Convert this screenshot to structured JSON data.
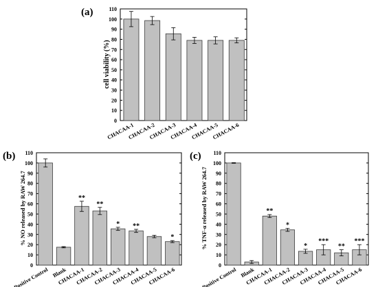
{
  "colors": {
    "bar_fill": "#c0c0c0",
    "bar_stroke": "#3a3a3a",
    "axis": "#000000"
  },
  "chart_data": [
    {
      "type": "bar",
      "panel_label": "(a)",
      "categories": [
        "CHACAA-1",
        "CHACAA-2",
        "CHACAA-3",
        "CHACAA-4",
        "CHACAA-5",
        "CHACAA-6"
      ],
      "values": [
        100,
        98.5,
        85.5,
        79,
        79,
        79
      ],
      "errors": [
        7.5,
        4,
        6,
        3,
        3.5,
        2.5
      ],
      "significance": [
        "",
        "",
        "",
        "",
        "",
        ""
      ],
      "ylabel": "cell viability (%)",
      "ylim": [
        0,
        110
      ],
      "yticks": [
        "0",
        "10",
        "20",
        "30",
        "40",
        "50",
        "60",
        "70",
        "80",
        "90",
        "100",
        "110"
      ],
      "grid": false
    },
    {
      "type": "bar",
      "panel_label": "(b)",
      "categories": [
        "Positive Control",
        "Blank",
        "CHACAA-1",
        "CHACAA-2",
        "CHACAA-3",
        "CHACAA-4",
        "CHACAA-5",
        "CHACAA-6"
      ],
      "values": [
        100,
        17.5,
        57.5,
        53,
        35.5,
        33.5,
        28,
        23
      ],
      "errors": [
        4,
        0.6,
        5,
        3.5,
        1.5,
        1.5,
        1.2,
        1
      ],
      "significance": [
        "",
        "",
        "**",
        "**",
        "*",
        "**",
        "",
        "*"
      ],
      "ylabel": "% NO released by RAW 264.7",
      "ylim": [
        0,
        110
      ],
      "yticks": [
        "0",
        "10",
        "20",
        "30",
        "40",
        "50",
        "60",
        "70",
        "80",
        "90",
        "100",
        "110"
      ],
      "grid": false
    },
    {
      "type": "bar",
      "panel_label": "(c)",
      "categories": [
        "Positive Control",
        "Blank",
        "CHACAA-1",
        "CHACAA-2",
        "CHACAA-3",
        "CHACAA-4",
        "CHACAA-5",
        "CHACAA-6"
      ],
      "values": [
        100,
        3,
        48,
        34.5,
        13.5,
        15,
        12,
        15
      ],
      "errors": [
        0.3,
        1.5,
        1.5,
        1.5,
        2,
        5,
        3,
        5
      ],
      "significance": [
        "",
        "",
        "**",
        "*",
        "*",
        "***",
        "**",
        "***"
      ],
      "ylabel": "% TNF-α released by RAW 264.7",
      "ylim": [
        0,
        110
      ],
      "yticks": [
        "0",
        "10",
        "20",
        "30",
        "40",
        "50",
        "60",
        "70",
        "80",
        "90",
        "100",
        "110"
      ],
      "grid": false
    }
  ]
}
